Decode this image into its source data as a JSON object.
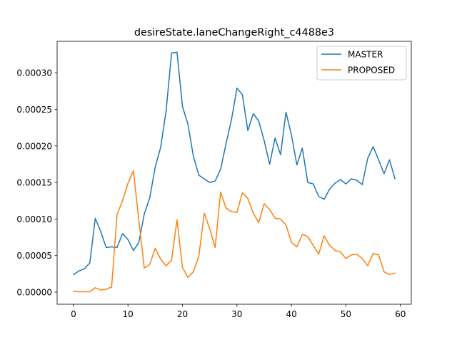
{
  "chart_data": {
    "type": "line",
    "title": "desireState.laneChangeRight_c4488e3",
    "xlabel": "",
    "ylabel": "",
    "xlim": [
      -3,
      62
    ],
    "ylim": [
      -1.65e-05,
      0.000343
    ],
    "x_ticks": [
      0,
      10,
      20,
      30,
      40,
      50,
      60
    ],
    "x_tick_labels": [
      "0",
      "10",
      "20",
      "30",
      "40",
      "50",
      "60"
    ],
    "y_ticks": [
      0,
      5e-05,
      0.0001,
      0.00015,
      0.0002,
      0.00025,
      0.0003
    ],
    "y_tick_labels": [
      "0.00000",
      "0.00005",
      "0.00010",
      "0.00015",
      "0.00020",
      "0.00025",
      "0.00030"
    ],
    "grid": false,
    "legend_position": "top-right",
    "x": [
      0,
      1,
      2,
      3,
      4,
      5,
      6,
      7,
      8,
      9,
      10,
      11,
      12,
      13,
      14,
      15,
      16,
      17,
      18,
      19,
      20,
      21,
      22,
      23,
      24,
      25,
      26,
      27,
      28,
      29,
      30,
      31,
      32,
      33,
      34,
      35,
      36,
      37,
      38,
      39,
      40,
      41,
      42,
      43,
      44,
      45,
      46,
      47,
      48,
      49,
      50,
      51,
      52,
      53,
      54,
      55,
      56,
      57,
      58,
      59
    ],
    "series": [
      {
        "name": "MASTER",
        "color": "#1f77b4",
        "values": [
          2.4e-05,
          2.9e-05,
          3.2e-05,
          4e-05,
          0.000101,
          8.3e-05,
          6.1e-05,
          6.2e-05,
          6.1e-05,
          8e-05,
          7.2e-05,
          5.7e-05,
          6.8e-05,
          0.000107,
          0.000129,
          0.000171,
          0.000198,
          0.000248,
          0.000327,
          0.000328,
          0.000254,
          0.00023,
          0.000186,
          0.00016,
          0.000155,
          0.00015,
          0.000152,
          0.000168,
          0.000203,
          0.000236,
          0.000279,
          0.00027,
          0.000221,
          0.000244,
          0.000234,
          0.000207,
          0.000175,
          0.000211,
          0.000188,
          0.000246,
          0.000215,
          0.000174,
          0.000197,
          0.00015,
          0.000148,
          0.000131,
          0.000127,
          0.000141,
          0.000149,
          0.000154,
          0.000148,
          0.000155,
          0.000153,
          0.000147,
          0.000183,
          0.000199,
          0.000181,
          0.000162,
          0.000181,
          0.000155
        ]
      },
      {
        "name": "PROPOSED",
        "color": "#ff7f0e",
        "values": [
          1e-06,
          5e-07,
          5e-07,
          5e-07,
          6e-06,
          3e-06,
          4e-06,
          7e-06,
          0.000106,
          0.000125,
          0.000149,
          0.000166,
          9.8e-05,
          3.3e-05,
          3.8e-05,
          6e-05,
          4.5e-05,
          3.6e-05,
          4.4e-05,
          9.9e-05,
          3.4e-05,
          2e-05,
          2.8e-05,
          4.9e-05,
          0.000108,
          8.7e-05,
          6.1e-05,
          0.000137,
          0.000115,
          0.00011,
          0.000109,
          0.000136,
          0.000128,
          0.000108,
          9.5e-05,
          0.000121,
          0.000113,
          0.000101,
          0.0001,
          9.2e-05,
          6.8e-05,
          6.2e-05,
          7.9e-05,
          7.6e-05,
          6.4e-05,
          5.2e-05,
          7.7e-05,
          6.4e-05,
          5.7e-05,
          5.5e-05,
          4.6e-05,
          5.1e-05,
          5.2e-05,
          4.6e-05,
          3.6e-05,
          5.3e-05,
          5.1e-05,
          2.8e-05,
          2.4e-05,
          2.6e-05
        ]
      }
    ]
  }
}
